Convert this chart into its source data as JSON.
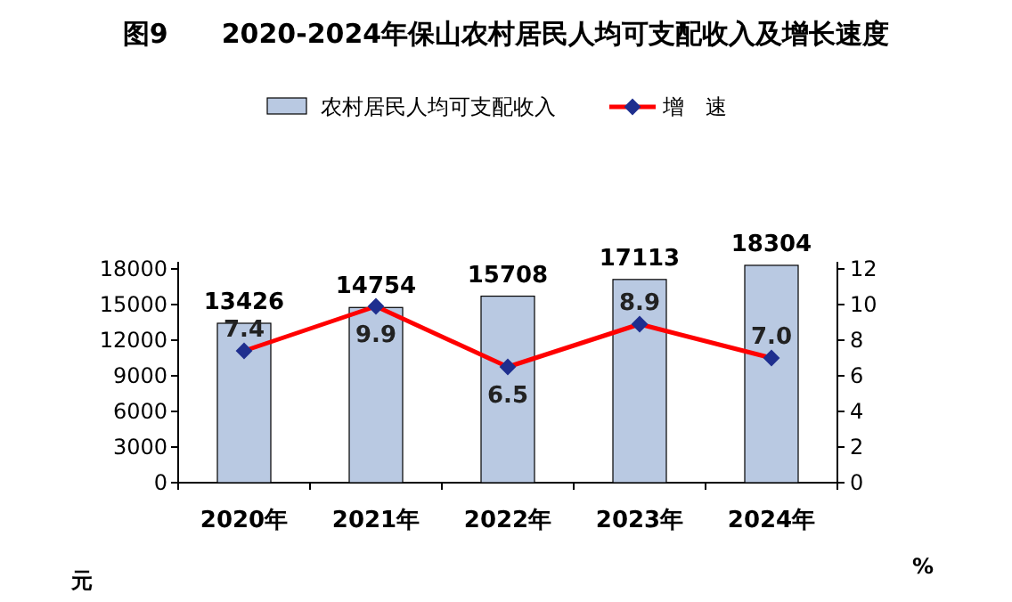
{
  "chart_data": {
    "type": "bar",
    "title": "图9　　2020-2024年保山农村居民人均可支配收入及增长速度",
    "categories": [
      "2020年",
      "2021年",
      "2022年",
      "2023年",
      "2024年"
    ],
    "series": [
      {
        "name": "农村居民人均可支配收入",
        "color": "#b9c9e2",
        "values": [
          13426,
          14754,
          15708,
          17113,
          18304
        ],
        "value_labels": [
          "13426",
          "14754",
          "15708",
          "17113",
          "18304"
        ]
      },
      {
        "name": "增　速",
        "type": "line",
        "axis": "y2",
        "color": "#ff0000",
        "values": [
          7.4,
          9.9,
          6.5,
          8.9,
          7.0
        ],
        "value_labels": [
          "7.4",
          "9.9",
          "6.5",
          "8.9",
          "7.0"
        ]
      }
    ],
    "ylim": [
      0,
      18600
    ],
    "yticks": [
      0,
      3000,
      6000,
      9000,
      12000,
      15000,
      18000
    ],
    "y2lim": [
      0,
      12.4
    ],
    "y2ticks": [
      0,
      2,
      4,
      6,
      8,
      10,
      12
    ],
    "ylabel": "元",
    "y2label": "%",
    "legend": "top",
    "marker": "diamond"
  }
}
